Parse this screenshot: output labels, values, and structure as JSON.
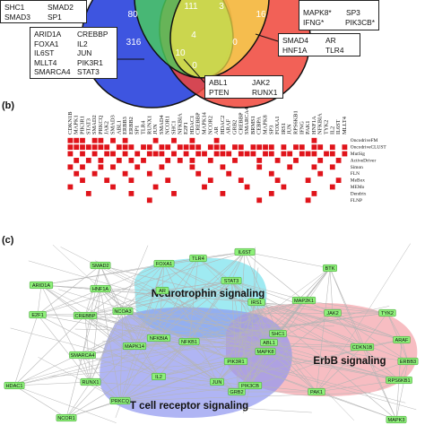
{
  "panels": {
    "b_label": "(b)",
    "c_label": "(c)"
  },
  "venn": {
    "counts": [
      "80",
      "111",
      "3",
      "16",
      "316",
      "4",
      "0",
      "10",
      "0"
    ],
    "box_top_left": [
      [
        "SHC1",
        "SMAD2"
      ],
      [
        "SMAD3",
        "SP1"
      ]
    ],
    "box_top_right": [
      [
        "MAPK8*",
        "SP3"
      ],
      [
        "IFNG*",
        "PIK3CB*"
      ]
    ],
    "box_left": [
      [
        "ARID1A",
        "CREBBP"
      ],
      [
        "FOXA1",
        "IL2"
      ],
      [
        "IL6ST",
        "JUN"
      ],
      [
        "MLLT4",
        "PIK3R1"
      ],
      [
        "SMARCA4",
        "STAT3"
      ]
    ],
    "box_right": [
      [
        "SMAD4",
        "AR"
      ],
      [
        "HNF1A",
        "TLR4"
      ]
    ],
    "box_bottom": [
      [
        "ABL1",
        "JAK2"
      ],
      [
        "PTEN",
        "RUNX1"
      ]
    ]
  },
  "matrix": {
    "genes": [
      "CDKN1B",
      "MAPK1",
      "PIK3R1",
      "STAT3",
      "SMAD2",
      "PRKCQ",
      "JAK2",
      "SMAD3",
      "ABL1",
      "ERBB3",
      "ERBB2",
      "SP1",
      "TLR4",
      "RUNX1",
      "JUN",
      "SMAD4",
      "NCOR1",
      "SHC1",
      "NFKBIA",
      "E2F1",
      "HDAC1",
      "CREBBP",
      "MAPK14",
      "NCOR2",
      "AR",
      "HDAC2",
      "ARAF",
      "GRB2",
      "CREBBP",
      "SMARCA4",
      "BRMS1",
      "CEBPA",
      "MAPK8",
      "SP3",
      "FOXA1",
      "IRS1",
      "JUN",
      "RPS6KB1",
      "IFNG",
      "PAK1",
      "HNF1A",
      "NFKBIA",
      "TYK2",
      "IL2",
      "IL6ST",
      "MLLT4"
    ],
    "methods": [
      "OncodriveFM",
      "OncodriveCLUST",
      "MutSig",
      "ActiveDriver",
      "Simon",
      "FLN",
      "MeBox",
      "MEMo",
      "Dendrix",
      "FLNP"
    ],
    "grid": [
      "1110110101000010010010001000000000000000100000",
      "1111111011101101101111011101101111010110110101",
      "1010101101010111010101101110111011011011101101",
      "0101010010101000101010010001000100100100010010",
      "1010010100010001000010000100000100001000100100",
      "0100100001000100000001000010000001000000010000",
      "0010001000100000100000010000100000100001000010",
      "1000000100000010000000100000010000010000000100",
      "0001000000100000010000000100000001000000100000",
      "0000000000000100000000000000000100000001000000"
    ]
  },
  "network": {
    "nodes": [
      {
        "id": "IL6ST",
        "label": "IL6ST"
      },
      {
        "id": "TLR4",
        "label": "TLR4"
      },
      {
        "id": "FOXA1",
        "label": "FOXA1"
      },
      {
        "id": "STAT3",
        "label": "STAT3"
      },
      {
        "id": "SMAD2",
        "label": "SMAD2"
      },
      {
        "id": "BTK",
        "label": "BTK"
      },
      {
        "id": "HNF1A",
        "label": "HNF1A"
      },
      {
        "id": "ARID1A",
        "label": "ARID1A"
      },
      {
        "id": "AR",
        "label": "AR"
      },
      {
        "id": "IRS1",
        "label": "IRS1"
      },
      {
        "id": "MAP2K1",
        "label": "MAP2K1"
      },
      {
        "id": "NCOA3",
        "label": "NCOA3"
      },
      {
        "id": "JAK2",
        "label": "JAK2"
      },
      {
        "id": "TYK2",
        "label": "TYK2"
      },
      {
        "id": "E2F1",
        "label": "E2F1"
      },
      {
        "id": "CREBBP",
        "label": "CREBBP"
      },
      {
        "id": "SHC1",
        "label": "SHC1"
      },
      {
        "id": "ARAF",
        "label": "ARAF"
      },
      {
        "id": "NFKBIA",
        "label": "NFKBIA"
      },
      {
        "id": "ABL1",
        "label": "ABL1"
      },
      {
        "id": "CDKN1B",
        "label": "CDKN1B"
      },
      {
        "id": "MAPK14",
        "label": "MAPK14"
      },
      {
        "id": "NFKB1",
        "label": "NFKB1"
      },
      {
        "id": "MAPK8",
        "label": "MAPK8"
      },
      {
        "id": "ERBB3",
        "label": "ERBB3"
      },
      {
        "id": "SMARCA4",
        "label": "SMARCA4"
      },
      {
        "id": "PIK3R1",
        "label": "PIK3R1"
      },
      {
        "id": "HDAC1",
        "label": "HDAC1"
      },
      {
        "id": "RUNX1",
        "label": "RUNX1"
      },
      {
        "id": "IL2",
        "label": "IL2"
      },
      {
        "id": "JUN",
        "label": "JUN"
      },
      {
        "id": "PIK3CB",
        "label": "PIK3CB"
      },
      {
        "id": "RPS6KB1",
        "label": "RPS6KB1"
      },
      {
        "id": "GRB2",
        "label": "GRB2"
      },
      {
        "id": "PAK1",
        "label": "PAK1"
      },
      {
        "id": "PRKCQ",
        "label": "PRKCQ"
      },
      {
        "id": "NCOR1",
        "label": "NCOR1"
      },
      {
        "id": "MAPK3",
        "label": "MAPK3"
      }
    ],
    "regions": [
      {
        "label": "Neurotrophin signaling"
      },
      {
        "label": "ErbB signaling"
      },
      {
        "label": "T cell receptor signaling"
      }
    ],
    "colors": {
      "node_fill": "#8ef07a",
      "node_stroke": "#3a9a2c",
      "edge": "#b5b5b5",
      "neurotrophin": "#7fe3ee",
      "erbb": "#f3a1a8",
      "tcell": "#8f96f0"
    }
  }
}
